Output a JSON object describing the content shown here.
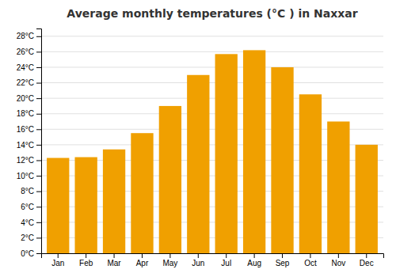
{
  "chart_data": {
    "type": "bar",
    "title": "Average monthly temperatures (°C ) in Naxxar",
    "categories": [
      "Jan",
      "Feb",
      "Mar",
      "Apr",
      "May",
      "Jun",
      "Jul",
      "Aug",
      "Sep",
      "Oct",
      "Nov",
      "Dec"
    ],
    "values": [
      12.3,
      12.4,
      13.4,
      15.5,
      19.0,
      23.0,
      25.7,
      26.2,
      24.0,
      20.5,
      17.0,
      14.0
    ],
    "color": "#F0A000",
    "ylim": [
      0,
      29
    ],
    "yticks": [
      {
        "value": 0,
        "label": "0°C"
      },
      {
        "value": 2,
        "label": "2°C"
      },
      {
        "value": 4,
        "label": "4°C"
      },
      {
        "value": 6,
        "label": "6°C"
      },
      {
        "value": 8,
        "label": "8°C"
      },
      {
        "value": 10,
        "label": "10°C"
      },
      {
        "value": 12,
        "label": "12°C"
      },
      {
        "value": 14,
        "label": "14°C"
      },
      {
        "value": 16,
        "label": "16°C"
      },
      {
        "value": 18,
        "label": "18°C"
      },
      {
        "value": 20,
        "label": "20°C"
      },
      {
        "value": 22,
        "label": "22°C"
      },
      {
        "value": 24,
        "label": "24°C"
      },
      {
        "value": 26,
        "label": "26°C"
      },
      {
        "value": 28,
        "label": "28°C"
      }
    ],
    "grid": true
  }
}
